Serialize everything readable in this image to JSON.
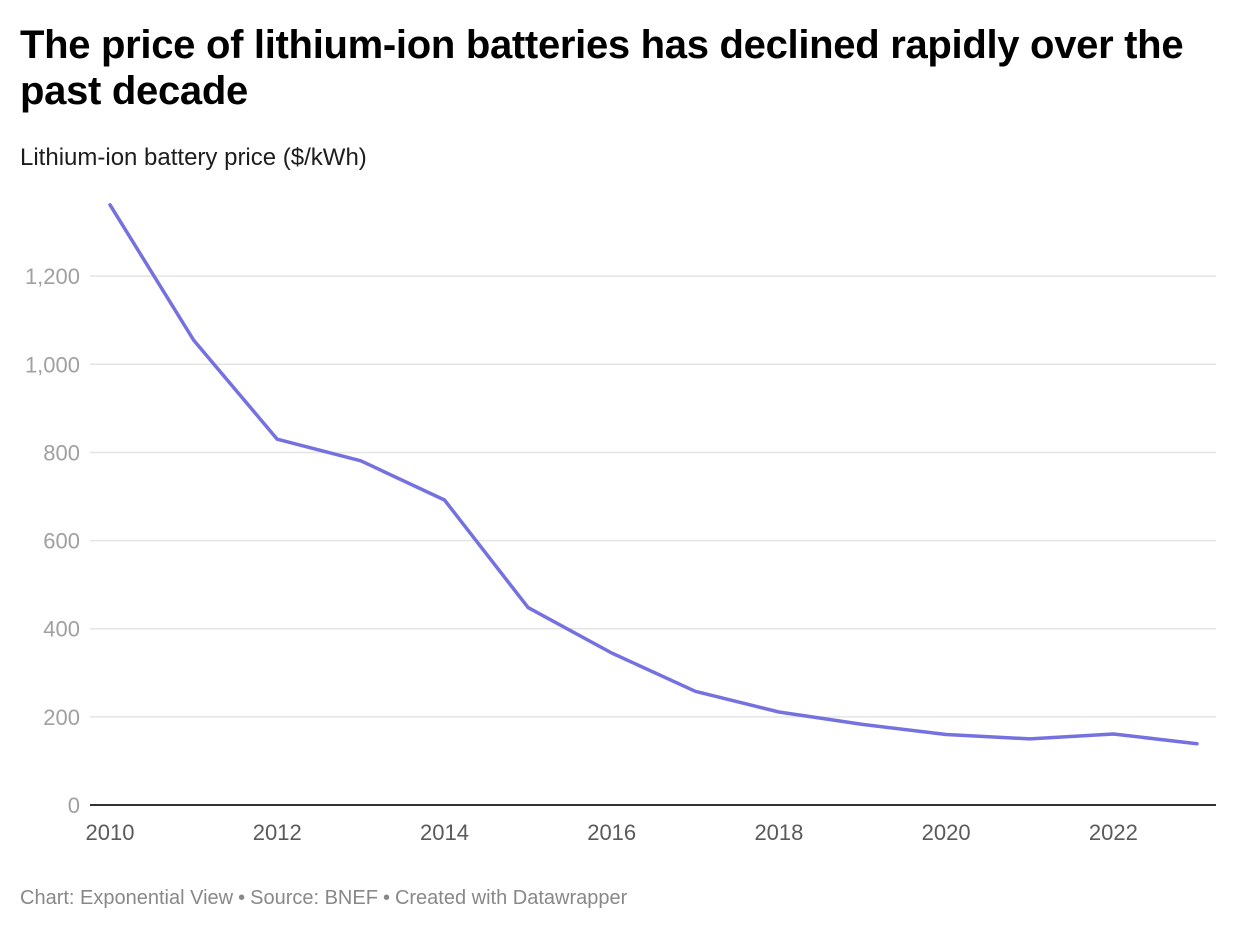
{
  "chart_data": {
    "type": "line",
    "title": "The price of lithium-ion batteries has declined rapidly over the past decade",
    "subtitle": "Lithium-ion battery price ($/kWh)",
    "xlabel": "",
    "ylabel": "",
    "x": [
      2010,
      2011,
      2012,
      2013,
      2014,
      2015,
      2016,
      2017,
      2018,
      2019,
      2020,
      2021,
      2022,
      2023
    ],
    "series": [
      {
        "values": [
          1362,
          1055,
          830,
          781,
          692,
          448,
          345,
          258,
          211,
          183,
          160,
          150,
          161,
          139
        ]
      }
    ],
    "xlim": [
      2010,
      2023
    ],
    "ylim": [
      0,
      1362
    ],
    "x_ticks": [
      "2010",
      "2012",
      "2014",
      "2016",
      "2018",
      "2020",
      "2022"
    ],
    "y_ticks": [
      "0",
      "200",
      "400",
      "600",
      "800",
      "1,000",
      "1,200"
    ],
    "grid": "horizontal",
    "legend": "none",
    "colors": {
      "line": "#7572e0",
      "grid": "#e4e4e4",
      "axis": "#333333",
      "tick_label": "#a0a0a0",
      "x_tick_label": "#5a5a5a"
    }
  },
  "footer": {
    "chart_credit": "Chart: Exponential View",
    "separator": "•",
    "source": "Source: BNEF",
    "created_with": "Created with Datawrapper"
  }
}
